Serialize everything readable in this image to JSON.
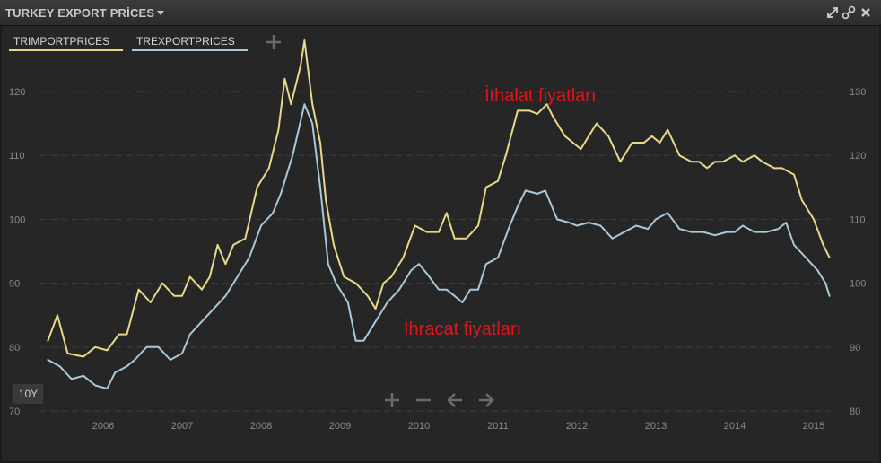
{
  "window": {
    "title": "TURKEY EXPORT PRİCES",
    "icons": [
      "expand-icon",
      "link-icon",
      "close-icon"
    ]
  },
  "tabs": [
    {
      "label": "TRIMPORTPRICES",
      "color": "#e8d98a"
    },
    {
      "label": "TREXPORTPRICES",
      "color": "#a9c9db"
    }
  ],
  "controls": {
    "range_label": "10Y",
    "icons": [
      "zoom-in-icon",
      "zoom-out-icon",
      "pan-left-icon",
      "pan-right-icon"
    ]
  },
  "chart_data": {
    "type": "line",
    "x_ticks": [
      "2006",
      "2007",
      "2008",
      "2009",
      "2010",
      "2011",
      "2012",
      "2013",
      "2014",
      "2015"
    ],
    "y_left": {
      "ticks": [
        70,
        80,
        90,
        100,
        110,
        120
      ],
      "range": [
        68,
        133
      ]
    },
    "y_right": {
      "ticks": [
        80,
        90,
        100,
        110,
        120,
        130
      ],
      "range": [
        78,
        143
      ]
    },
    "annotations": [
      {
        "text": "İthalat fiyatları",
        "color": "#e0151b"
      },
      {
        "text": "İhracat fiyatları",
        "color": "#e0151b"
      }
    ],
    "grid": true,
    "series": [
      {
        "name": "TRIMPORTPRICES",
        "axis": "right",
        "color": "#e8d98a",
        "points": [
          [
            2005.3,
            91
          ],
          [
            2005.42,
            95
          ],
          [
            2005.55,
            89
          ],
          [
            2005.75,
            88.5
          ],
          [
            2005.9,
            90
          ],
          [
            2006.05,
            89.5
          ],
          [
            2006.2,
            92
          ],
          [
            2006.3,
            92
          ],
          [
            2006.45,
            99
          ],
          [
            2006.6,
            97
          ],
          [
            2006.75,
            100
          ],
          [
            2006.9,
            98
          ],
          [
            2007.0,
            98
          ],
          [
            2007.1,
            101
          ],
          [
            2007.25,
            99
          ],
          [
            2007.35,
            101
          ],
          [
            2007.45,
            106
          ],
          [
            2007.55,
            103
          ],
          [
            2007.65,
            106
          ],
          [
            2007.8,
            107
          ],
          [
            2007.95,
            115
          ],
          [
            2008.1,
            118
          ],
          [
            2008.22,
            124
          ],
          [
            2008.3,
            132
          ],
          [
            2008.38,
            128
          ],
          [
            2008.5,
            134
          ],
          [
            2008.55,
            138
          ],
          [
            2008.65,
            128
          ],
          [
            2008.75,
            122
          ],
          [
            2008.82,
            113
          ],
          [
            2008.92,
            106
          ],
          [
            2009.05,
            101
          ],
          [
            2009.2,
            100
          ],
          [
            2009.35,
            98
          ],
          [
            2009.45,
            96
          ],
          [
            2009.55,
            100
          ],
          [
            2009.65,
            101
          ],
          [
            2009.8,
            104
          ],
          [
            2009.95,
            109
          ],
          [
            2010.1,
            108
          ],
          [
            2010.25,
            108
          ],
          [
            2010.35,
            111
          ],
          [
            2010.45,
            107
          ],
          [
            2010.6,
            107
          ],
          [
            2010.75,
            109
          ],
          [
            2010.85,
            115
          ],
          [
            2011.0,
            116
          ],
          [
            2011.1,
            120
          ],
          [
            2011.25,
            127
          ],
          [
            2011.4,
            127
          ],
          [
            2011.5,
            126.5
          ],
          [
            2011.62,
            128
          ],
          [
            2011.7,
            126
          ],
          [
            2011.85,
            123
          ],
          [
            2012.05,
            121
          ],
          [
            2012.15,
            123
          ],
          [
            2012.25,
            125
          ],
          [
            2012.4,
            123
          ],
          [
            2012.55,
            119
          ],
          [
            2012.7,
            122
          ],
          [
            2012.85,
            122
          ],
          [
            2012.95,
            123
          ],
          [
            2013.05,
            122
          ],
          [
            2013.15,
            124
          ],
          [
            2013.3,
            120
          ],
          [
            2013.45,
            119
          ],
          [
            2013.55,
            119
          ],
          [
            2013.65,
            118
          ],
          [
            2013.75,
            119
          ],
          [
            2013.85,
            119
          ],
          [
            2014.0,
            120
          ],
          [
            2014.1,
            119
          ],
          [
            2014.25,
            120
          ],
          [
            2014.35,
            119
          ],
          [
            2014.5,
            118
          ],
          [
            2014.6,
            118
          ],
          [
            2014.75,
            117
          ],
          [
            2014.85,
            113
          ],
          [
            2015.0,
            110
          ],
          [
            2015.12,
            106
          ],
          [
            2015.2,
            104
          ]
        ]
      },
      {
        "name": "TREXPORTPRICES",
        "axis": "left",
        "color": "#a9c9db",
        "points": [
          [
            2005.3,
            78
          ],
          [
            2005.45,
            77
          ],
          [
            2005.6,
            75
          ],
          [
            2005.75,
            75.5
          ],
          [
            2005.9,
            74
          ],
          [
            2006.05,
            73.5
          ],
          [
            2006.15,
            76
          ],
          [
            2006.3,
            77
          ],
          [
            2006.4,
            78
          ],
          [
            2006.55,
            80
          ],
          [
            2006.7,
            80
          ],
          [
            2006.85,
            78
          ],
          [
            2007.0,
            79
          ],
          [
            2007.1,
            82
          ],
          [
            2007.25,
            84
          ],
          [
            2007.4,
            86
          ],
          [
            2007.55,
            88
          ],
          [
            2007.7,
            91
          ],
          [
            2007.85,
            94
          ],
          [
            2008.0,
            99
          ],
          [
            2008.15,
            101
          ],
          [
            2008.25,
            104
          ],
          [
            2008.4,
            110
          ],
          [
            2008.55,
            118
          ],
          [
            2008.65,
            115
          ],
          [
            2008.75,
            105
          ],
          [
            2008.85,
            93
          ],
          [
            2008.95,
            90
          ],
          [
            2009.1,
            87
          ],
          [
            2009.2,
            81
          ],
          [
            2009.3,
            81
          ],
          [
            2009.45,
            84
          ],
          [
            2009.6,
            87
          ],
          [
            2009.75,
            89
          ],
          [
            2009.9,
            92
          ],
          [
            2010.0,
            93
          ],
          [
            2010.1,
            91.5
          ],
          [
            2010.25,
            89
          ],
          [
            2010.35,
            89
          ],
          [
            2010.45,
            88
          ],
          [
            2010.55,
            87
          ],
          [
            2010.65,
            89
          ],
          [
            2010.75,
            89
          ],
          [
            2010.85,
            93
          ],
          [
            2011.0,
            94
          ],
          [
            2011.15,
            99
          ],
          [
            2011.25,
            102
          ],
          [
            2011.35,
            104.5
          ],
          [
            2011.5,
            104
          ],
          [
            2011.6,
            104.5
          ],
          [
            2011.75,
            100
          ],
          [
            2011.9,
            99.5
          ],
          [
            2012.0,
            99
          ],
          [
            2012.15,
            99.5
          ],
          [
            2012.3,
            99
          ],
          [
            2012.45,
            97
          ],
          [
            2012.6,
            98
          ],
          [
            2012.75,
            99
          ],
          [
            2012.9,
            98.5
          ],
          [
            2013.0,
            100
          ],
          [
            2013.15,
            101
          ],
          [
            2013.3,
            98.5
          ],
          [
            2013.45,
            98
          ],
          [
            2013.6,
            98
          ],
          [
            2013.75,
            97.5
          ],
          [
            2013.9,
            98
          ],
          [
            2014.0,
            98
          ],
          [
            2014.1,
            99
          ],
          [
            2014.25,
            98
          ],
          [
            2014.4,
            98
          ],
          [
            2014.55,
            98.5
          ],
          [
            2014.65,
            99.5
          ],
          [
            2014.75,
            96
          ],
          [
            2014.9,
            94
          ],
          [
            2015.05,
            92
          ],
          [
            2015.15,
            90
          ],
          [
            2015.2,
            88
          ]
        ]
      }
    ]
  }
}
